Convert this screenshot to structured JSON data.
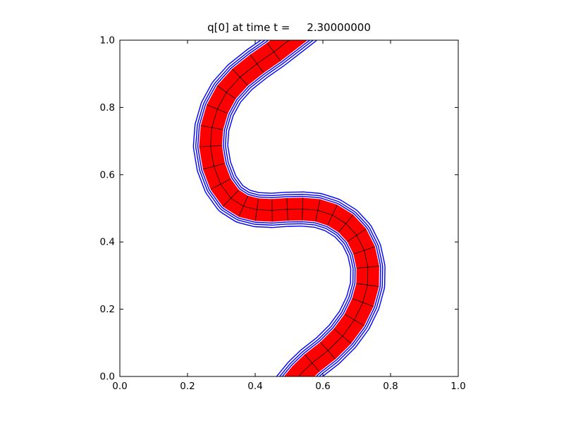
{
  "chart_data": {
    "type": "filled-contour",
    "title": "q[0] at time t =     2.30000000",
    "xlabel": "",
    "ylabel": "",
    "xlim": [
      0.0,
      1.0
    ],
    "ylim": [
      0.0,
      1.0
    ],
    "xticks": [
      0.0,
      0.2,
      0.4,
      0.6,
      0.8,
      1.0
    ],
    "yticks": [
      0.0,
      0.2,
      0.4,
      0.6,
      0.8,
      1.0
    ],
    "xtick_labels": [
      "0.0",
      "0.2",
      "0.4",
      "0.6",
      "0.8",
      "1.0"
    ],
    "ytick_labels": [
      "0.0",
      "0.2",
      "0.4",
      "0.6",
      "0.8",
      "1.0"
    ],
    "grid": false,
    "legend": null,
    "colors": {
      "fill": "#ff0000",
      "contour_line": "#0000ff",
      "mesh_line": "#000000",
      "axes": "#000000",
      "background": "#ffffff"
    },
    "band": {
      "description": "S-shaped advected tracer band (swirl test): q=1 region filled red, nested blue contour lines around it, black computational mesh lines inside",
      "core_width": 0.067,
      "contour_offsets": [
        0.004,
        0.01,
        0.017
      ],
      "centerline": [
        [
          0.545,
          1.035
        ],
        [
          0.5,
          1.0
        ],
        [
          0.455,
          0.965
        ],
        [
          0.405,
          0.93
        ],
        [
          0.355,
          0.89
        ],
        [
          0.315,
          0.845
        ],
        [
          0.288,
          0.795
        ],
        [
          0.272,
          0.74
        ],
        [
          0.268,
          0.685
        ],
        [
          0.278,
          0.625
        ],
        [
          0.298,
          0.572
        ],
        [
          0.328,
          0.53
        ],
        [
          0.365,
          0.506
        ],
        [
          0.405,
          0.496
        ],
        [
          0.45,
          0.494
        ],
        [
          0.495,
          0.497
        ],
        [
          0.54,
          0.498
        ],
        [
          0.585,
          0.494
        ],
        [
          0.628,
          0.48
        ],
        [
          0.668,
          0.455
        ],
        [
          0.7,
          0.42
        ],
        [
          0.722,
          0.375
        ],
        [
          0.733,
          0.325
        ],
        [
          0.732,
          0.272
        ],
        [
          0.718,
          0.22
        ],
        [
          0.693,
          0.168
        ],
        [
          0.658,
          0.12
        ],
        [
          0.615,
          0.077
        ],
        [
          0.568,
          0.04
        ],
        [
          0.535,
          0.008
        ],
        [
          0.5,
          -0.035
        ]
      ]
    }
  }
}
